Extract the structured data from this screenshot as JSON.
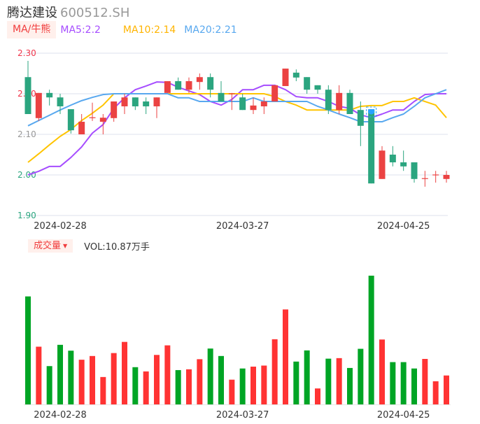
{
  "header": {
    "name": "腾达建设",
    "code": "600512.SH"
  },
  "ma_legend": {
    "tag": "MA/牛熊",
    "ma5": "MA5:2.2",
    "ma10": "MA10:2.14",
    "ma20": "MA20:2.21"
  },
  "volume_legend": {
    "tag": "成交量",
    "value": "VOL:10.87万手"
  },
  "colors": {
    "up": "#eb4242",
    "down": "#2ba57f",
    "vol_up": "#ff3333",
    "vol_down": "#00a525",
    "ma5": "#a64dff",
    "ma10": "#ffc400",
    "ma20": "#58a8ef",
    "grid": "#dde0ee"
  },
  "chart_data": [
    {
      "type": "candlestick",
      "ylim": [
        1.9,
        2.3
      ],
      "y_ticks": [
        "2.30",
        "2.20",
        "2.10",
        "2.00",
        "1.90"
      ],
      "x_tick_labels": [
        {
          "index": 3,
          "label": "2024-02-28"
        },
        {
          "index": 20,
          "label": "2024-03-27"
        },
        {
          "index": 35,
          "label": "2024-04-25"
        }
      ],
      "highlight_index": 32,
      "ohlc": [
        [
          2.241,
          2.15,
          2.281,
          2.15
        ],
        [
          2.14,
          2.202,
          2.202,
          2.133
        ],
        [
          2.202,
          2.191,
          2.21,
          2.171
        ],
        [
          2.191,
          2.169,
          2.2,
          2.15
        ],
        [
          2.162,
          2.11,
          2.162,
          2.102
        ],
        [
          2.1,
          2.131,
          2.15,
          2.1
        ],
        [
          2.14,
          2.142,
          2.178,
          2.133
        ],
        [
          2.131,
          2.141,
          2.15,
          2.1
        ],
        [
          2.14,
          2.181,
          2.181,
          2.131
        ],
        [
          2.169,
          2.191,
          2.2,
          2.15
        ],
        [
          2.191,
          2.169,
          2.191,
          2.16
        ],
        [
          2.181,
          2.169,
          2.191,
          2.15
        ],
        [
          2.169,
          2.191,
          2.191,
          2.14
        ],
        [
          2.202,
          2.231,
          2.231,
          2.202
        ],
        [
          2.231,
          2.21,
          2.24,
          2.21
        ],
        [
          2.21,
          2.231,
          2.24,
          2.202
        ],
        [
          2.229,
          2.241,
          2.25,
          2.21
        ],
        [
          2.241,
          2.21,
          2.25,
          2.191
        ],
        [
          2.202,
          2.181,
          2.231,
          2.181
        ],
        [
          2.2,
          2.201,
          2.202,
          2.16
        ],
        [
          2.191,
          2.16,
          2.2,
          2.16
        ],
        [
          2.16,
          2.171,
          2.19,
          2.15
        ],
        [
          2.169,
          2.181,
          2.191,
          2.15
        ],
        [
          2.181,
          2.221,
          2.221,
          2.181
        ],
        [
          2.219,
          2.262,
          2.262,
          2.219
        ],
        [
          2.252,
          2.24,
          2.26,
          2.231
        ],
        [
          2.241,
          2.21,
          2.241,
          2.2
        ],
        [
          2.221,
          2.21,
          2.221,
          2.2
        ],
        [
          2.21,
          2.16,
          2.221,
          2.15
        ],
        [
          2.16,
          2.202,
          2.221,
          2.15
        ],
        [
          2.202,
          2.15,
          2.21,
          2.15
        ],
        [
          2.16,
          2.121,
          2.181,
          2.071
        ],
        [
          2.16,
          1.979,
          2.16,
          1.979
        ],
        [
          1.99,
          2.06,
          2.071,
          1.99
        ],
        [
          2.05,
          2.031,
          2.071,
          2.021
        ],
        [
          2.031,
          2.021,
          2.06,
          2.01
        ],
        [
          2.031,
          1.99,
          2.031,
          1.981
        ],
        [
          1.99,
          1.992,
          2.01,
          1.971
        ],
        [
          2.0,
          2.001,
          2.01,
          1.981
        ],
        [
          1.99,
          2.0,
          2.01,
          1.981
        ]
      ],
      "series": [
        {
          "name": "MA5",
          "values": [
            2.0,
            2.009,
            2.021,
            2.021,
            2.043,
            2.069,
            2.103,
            2.124,
            2.164,
            2.19,
            2.21,
            2.219,
            2.229,
            2.228,
            2.216,
            2.207,
            2.198,
            2.181,
            2.172,
            2.186,
            2.21,
            2.21,
            2.221,
            2.221,
            2.21,
            2.193,
            2.19,
            2.19,
            2.181,
            2.169,
            2.164,
            2.148,
            2.141,
            2.15,
            2.16,
            2.16,
            2.181,
            2.198,
            2.2,
            2.2
          ]
        },
        {
          "name": "MA10",
          "values": [
            2.031,
            2.052,
            2.074,
            2.095,
            2.112,
            2.134,
            2.152,
            2.172,
            2.2,
            2.2,
            2.2,
            2.2,
            2.2,
            2.2,
            2.2,
            2.2,
            2.2,
            2.2,
            2.2,
            2.2,
            2.2,
            2.2,
            2.2,
            2.193,
            2.181,
            2.172,
            2.16,
            2.16,
            2.16,
            2.16,
            2.16,
            2.169,
            2.171,
            2.171,
            2.181,
            2.181,
            2.19,
            2.181,
            2.172,
            2.141
          ]
        },
        {
          "name": "MA20",
          "values": [
            2.121,
            2.134,
            2.147,
            2.16,
            2.172,
            2.183,
            2.191,
            2.198,
            2.2,
            2.2,
            2.2,
            2.2,
            2.2,
            2.2,
            2.19,
            2.19,
            2.181,
            2.181,
            2.181,
            2.181,
            2.181,
            2.19,
            2.181,
            2.181,
            2.181,
            2.181,
            2.181,
            2.169,
            2.16,
            2.15,
            2.141,
            2.131,
            2.131,
            2.131,
            2.141,
            2.15,
            2.169,
            2.19,
            2.2,
            2.21
          ]
        }
      ]
    },
    {
      "type": "bar",
      "ylabel": "成交量",
      "unit": "万手",
      "ylim": [
        0,
        48.4
      ],
      "x_tick_labels": [
        {
          "index": 3,
          "label": "2024-02-28"
        },
        {
          "index": 20,
          "label": "2024-03-27"
        },
        {
          "index": 35,
          "label": "2024-04-25"
        }
      ],
      "values": [
        40.6,
        21.7,
        14.4,
        22.4,
        20.2,
        16.8,
        18.2,
        10.3,
        19.3,
        23.5,
        14.0,
        12.4,
        18.6,
        22.2,
        12.9,
        13.2,
        17.0,
        21.0,
        18.2,
        9.3,
        13.5,
        14.2,
        14.6,
        24.5,
        35.7,
        16.1,
        20.3,
        6.0,
        17.2,
        17.4,
        13.7,
        20.9,
        48.4,
        24.4,
        15.9,
        15.9,
        13.5,
        17.1,
        8.7,
        10.87
      ],
      "direction": [
        "down",
        "up",
        "down",
        "down",
        "down",
        "up",
        "up",
        "up",
        "up",
        "up",
        "down",
        "up",
        "up",
        "up",
        "down",
        "up",
        "up",
        "down",
        "down",
        "up",
        "down",
        "up",
        "up",
        "up",
        "up",
        "down",
        "down",
        "up",
        "down",
        "up",
        "down",
        "down",
        "down",
        "up",
        "down",
        "down",
        "down",
        "up",
        "up",
        "up"
      ]
    }
  ]
}
